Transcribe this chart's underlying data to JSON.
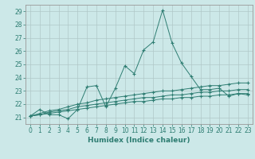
{
  "xlabel": "Humidex (Indice chaleur)",
  "x_values": [
    0,
    1,
    2,
    3,
    4,
    5,
    6,
    7,
    8,
    9,
    10,
    11,
    12,
    13,
    14,
    15,
    16,
    17,
    18,
    19,
    20,
    21,
    22,
    23
  ],
  "line1": [
    21.1,
    21.6,
    21.2,
    21.2,
    20.9,
    21.6,
    23.3,
    23.4,
    21.8,
    23.2,
    24.9,
    24.3,
    26.1,
    26.7,
    29.1,
    26.6,
    25.1,
    24.1,
    23.1,
    23.1,
    23.2,
    22.6,
    22.8,
    22.7
  ],
  "line2": [
    21.1,
    21.3,
    21.5,
    21.6,
    21.8,
    22.0,
    22.1,
    22.3,
    22.4,
    22.5,
    22.6,
    22.7,
    22.8,
    22.9,
    23.0,
    23.0,
    23.1,
    23.2,
    23.3,
    23.4,
    23.4,
    23.5,
    23.6,
    23.6
  ],
  "line3": [
    21.1,
    21.2,
    21.4,
    21.5,
    21.6,
    21.8,
    21.9,
    22.0,
    22.1,
    22.2,
    22.3,
    22.4,
    22.5,
    22.5,
    22.6,
    22.7,
    22.7,
    22.8,
    22.9,
    22.9,
    23.0,
    23.0,
    23.1,
    23.1
  ],
  "line4": [
    21.1,
    21.2,
    21.3,
    21.4,
    21.5,
    21.6,
    21.7,
    21.8,
    21.9,
    22.0,
    22.1,
    22.2,
    22.2,
    22.3,
    22.4,
    22.4,
    22.5,
    22.5,
    22.6,
    22.6,
    22.7,
    22.7,
    22.8,
    22.8
  ],
  "line_color": "#2e7d72",
  "bg_color": "#cce8e8",
  "grid_color": "#b0c8c8",
  "ylim": [
    20.5,
    29.5
  ],
  "yticks": [
    21,
    22,
    23,
    24,
    25,
    26,
    27,
    28,
    29
  ],
  "xticks": [
    0,
    1,
    2,
    3,
    4,
    5,
    6,
    7,
    8,
    9,
    10,
    11,
    12,
    13,
    14,
    15,
    16,
    17,
    18,
    19,
    20,
    21,
    22,
    23
  ],
  "tick_fontsize": 5.5,
  "xlabel_fontsize": 6.5
}
